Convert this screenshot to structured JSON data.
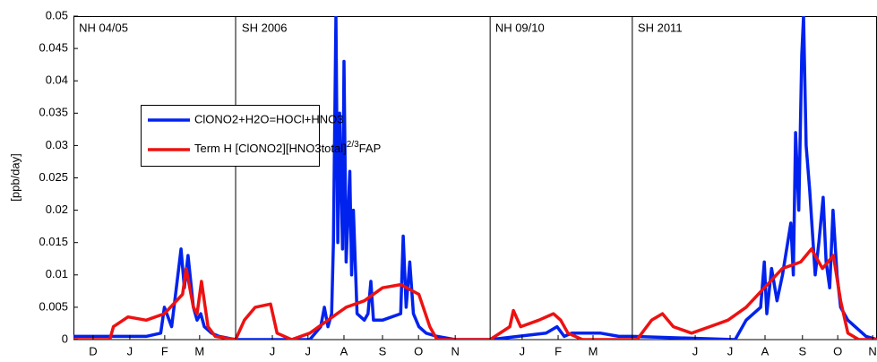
{
  "chart_data": {
    "type": "line",
    "y_label": "[ppb/day]",
    "ylim": [
      0,
      0.05
    ],
    "yticks": [
      0,
      0.005,
      0.01,
      0.015,
      0.02,
      0.025,
      0.03,
      0.035,
      0.04,
      0.045,
      0.05
    ],
    "xlim": [
      0,
      22.1
    ],
    "xticks": [
      {
        "value": 0.54,
        "label": "D"
      },
      {
        "value": 1.55,
        "label": "J"
      },
      {
        "value": 2.51,
        "label": "F"
      },
      {
        "value": 3.47,
        "label": "M"
      },
      {
        "value": 5.47,
        "label": "J"
      },
      {
        "value": 6.45,
        "label": "J"
      },
      {
        "value": 7.44,
        "label": "A"
      },
      {
        "value": 8.5,
        "label": "S"
      },
      {
        "value": 9.49,
        "label": "O"
      },
      {
        "value": 10.5,
        "label": "N"
      },
      {
        "value": 12.34,
        "label": "J"
      },
      {
        "value": 13.33,
        "label": "F"
      },
      {
        "value": 14.29,
        "label": "M"
      },
      {
        "value": 17.1,
        "label": "J"
      },
      {
        "value": 18.06,
        "label": "J"
      },
      {
        "value": 19.02,
        "label": "A"
      },
      {
        "value": 20.05,
        "label": "S"
      },
      {
        "value": 21.02,
        "label": "O"
      },
      {
        "value": 21.98,
        "label": "N"
      }
    ],
    "dividers": [
      4.46,
      11.46,
      15.37
    ],
    "annotations": [
      {
        "text": "NH 04/05",
        "x": 0.15
      },
      {
        "text": "SH 2006",
        "x": 4.63
      },
      {
        "text": "NH 09/10",
        "x": 11.6
      },
      {
        "text": "SH 2011",
        "x": 15.52
      }
    ],
    "series": [
      {
        "name": "ClONO2+H2O=HOCl+HNO3",
        "color": "#0022ee",
        "x": [
          0,
          2.0,
          2.4,
          2.5,
          2.7,
          2.96,
          3.05,
          3.15,
          3.3,
          3.4,
          3.5,
          3.6,
          3.8,
          4.0,
          4.46,
          6.5,
          6.8,
          6.9,
          7.0,
          7.1,
          7.15,
          7.22,
          7.27,
          7.32,
          7.4,
          7.44,
          7.5,
          7.6,
          7.65,
          7.7,
          7.8,
          8.0,
          8.1,
          8.18,
          8.25,
          8.5,
          9.0,
          9.07,
          9.15,
          9.25,
          9.35,
          9.5,
          9.7,
          10.0,
          10.5,
          11.46,
          13.0,
          13.3,
          13.5,
          13.7,
          14.5,
          15.0,
          15.37,
          18.2,
          18.5,
          18.9,
          19.0,
          19.07,
          19.2,
          19.35,
          19.5,
          19.73,
          19.8,
          19.86,
          19.95,
          20.03,
          20.08,
          20.15,
          20.25,
          20.4,
          20.5,
          20.62,
          20.7,
          20.8,
          20.89,
          21.0,
          21.1,
          21.3,
          21.5,
          21.8,
          22.1
        ],
        "values": [
          0.0005,
          0.0005,
          0.001,
          0.005,
          0.002,
          0.014,
          0.008,
          0.013,
          0.005,
          0.003,
          0.004,
          0.002,
          0.001,
          0.0005,
          0,
          0,
          0.002,
          0.005,
          0.002,
          0.004,
          0.015,
          0.05,
          0.015,
          0.035,
          0.014,
          0.043,
          0.012,
          0.026,
          0.01,
          0.02,
          0.004,
          0.003,
          0.004,
          0.009,
          0.003,
          0.003,
          0.004,
          0.016,
          0.005,
          0.012,
          0.004,
          0.002,
          0.001,
          0.0005,
          0,
          0,
          0.001,
          0.002,
          0.0005,
          0.001,
          0.001,
          0.0005,
          0.0005,
          0,
          0.003,
          0.005,
          0.012,
          0.004,
          0.011,
          0.006,
          0.01,
          0.018,
          0.01,
          0.032,
          0.02,
          0.044,
          0.05,
          0.03,
          0.023,
          0.01,
          0.015,
          0.022,
          0.012,
          0.008,
          0.02,
          0.01,
          0.005,
          0.003,
          0.002,
          0.0005,
          0
        ]
      },
      {
        "name": [
          "Term H [ClONO2][HNO3total]",
          "2/3",
          "FAP"
        ],
        "color": "#ee1111",
        "x": [
          0,
          1.0,
          1.1,
          1.5,
          2.0,
          2.5,
          3.0,
          3.1,
          3.3,
          3.4,
          3.52,
          3.7,
          3.9,
          4.46,
          4.7,
          5.0,
          5.42,
          5.6,
          6.0,
          6.5,
          7.0,
          7.5,
          8.0,
          8.5,
          9.0,
          9.5,
          9.8,
          10.0,
          11.46,
          12.0,
          12.1,
          12.3,
          12.8,
          13.2,
          13.4,
          13.6,
          14.0,
          15.37,
          15.5,
          15.9,
          16.2,
          16.5,
          17.0,
          17.5,
          18.0,
          18.5,
          19.0,
          19.5,
          20.0,
          20.3,
          20.6,
          20.9,
          21.1,
          21.3,
          21.6,
          22.1
        ],
        "values": [
          0,
          0,
          0.002,
          0.0035,
          0.003,
          0.004,
          0.007,
          0.011,
          0.005,
          0.004,
          0.009,
          0.002,
          0.0005,
          0,
          0.003,
          0.005,
          0.0055,
          0.001,
          0,
          0.001,
          0.003,
          0.005,
          0.006,
          0.008,
          0.0085,
          0.007,
          0.002,
          0,
          0,
          0.002,
          0.0045,
          0.002,
          0.003,
          0.004,
          0.003,
          0.001,
          0,
          0,
          0,
          0.003,
          0.004,
          0.002,
          0.001,
          0.002,
          0.003,
          0.005,
          0.008,
          0.011,
          0.012,
          0.014,
          0.011,
          0.013,
          0.006,
          0.001,
          0,
          0
        ]
      }
    ]
  }
}
